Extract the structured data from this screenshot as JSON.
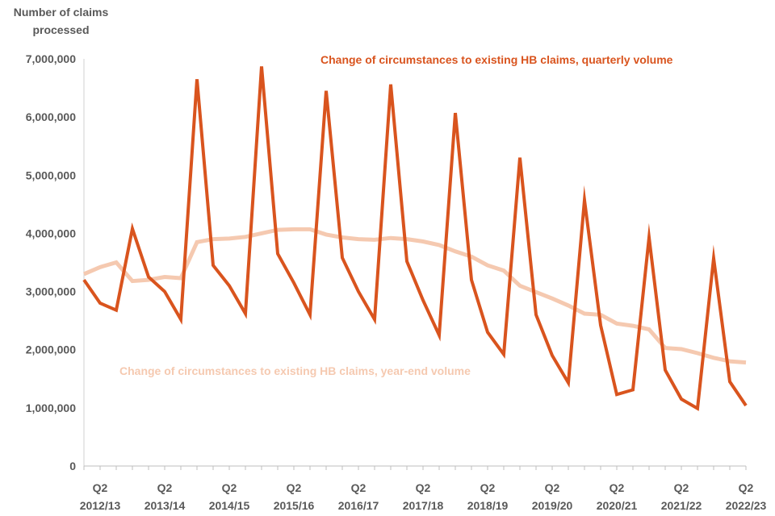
{
  "chart_data": {
    "type": "line",
    "ylabel": "Number of claims processed",
    "ylim": [
      0,
      7000000
    ],
    "yticks": [
      0,
      1000000,
      2000000,
      3000000,
      4000000,
      5000000,
      6000000,
      7000000
    ],
    "ytick_labels": [
      "0",
      "1,000,000",
      "2,000,000",
      "3,000,000",
      "4,000,000",
      "5,000,000",
      "6,000,000",
      "7,000,000"
    ],
    "x_tick_labels": [
      {
        "q": "Q2",
        "fy": "2012/13"
      },
      {
        "q": "Q2",
        "fy": "2013/14"
      },
      {
        "q": "Q2",
        "fy": "2014/15"
      },
      {
        "q": "Q2",
        "fy": "2015/16"
      },
      {
        "q": "Q2",
        "fy": "2016/17"
      },
      {
        "q": "Q2",
        "fy": "2017/18"
      },
      {
        "q": "Q2",
        "fy": "2018/19"
      },
      {
        "q": "Q2",
        "fy": "2019/20"
      },
      {
        "q": "Q2",
        "fy": "2020/21"
      },
      {
        "q": "Q2",
        "fy": "2021/22"
      },
      {
        "q": "Q2",
        "fy": "2022/23"
      }
    ],
    "grid": false,
    "series": [
      {
        "name": "Change of circumstances to existing HB claims, quarterly volume",
        "color": "#D9541E",
        "values": [
          3200000,
          2800000,
          2680000,
          4080000,
          3250000,
          3000000,
          2520000,
          6650000,
          3450000,
          3100000,
          2620000,
          6870000,
          3650000,
          3150000,
          2600000,
          6450000,
          3580000,
          3000000,
          2520000,
          6560000,
          3520000,
          2850000,
          2250000,
          6070000,
          3200000,
          2300000,
          1920000,
          5300000,
          2600000,
          1900000,
          1430000,
          4570000,
          2420000,
          1230000,
          1310000,
          3930000,
          1650000,
          1150000,
          990000,
          3570000,
          1450000,
          1040000
        ]
      },
      {
        "name": "Change of circumstances to existing HB claims, year-end volume",
        "color": "#F5C9B0",
        "values": [
          3300000,
          3420000,
          3500000,
          3180000,
          3200000,
          3250000,
          3230000,
          3850000,
          3900000,
          3910000,
          3940000,
          4000000,
          4060000,
          4070000,
          4070000,
          3980000,
          3930000,
          3900000,
          3890000,
          3920000,
          3900000,
          3860000,
          3800000,
          3690000,
          3600000,
          3450000,
          3360000,
          3100000,
          2990000,
          2880000,
          2760000,
          2620000,
          2600000,
          2450000,
          2410000,
          2350000,
          2030000,
          2010000,
          1940000,
          1860000,
          1800000,
          1780000
        ]
      }
    ]
  },
  "series_labels": {
    "quarterly": "Change of circumstances to existing HB claims, quarterly volume",
    "yearend": "Change of circumstances to existing HB claims, year-end volume"
  },
  "y_title_line1": "Number of claims",
  "y_title_line2": "processed"
}
